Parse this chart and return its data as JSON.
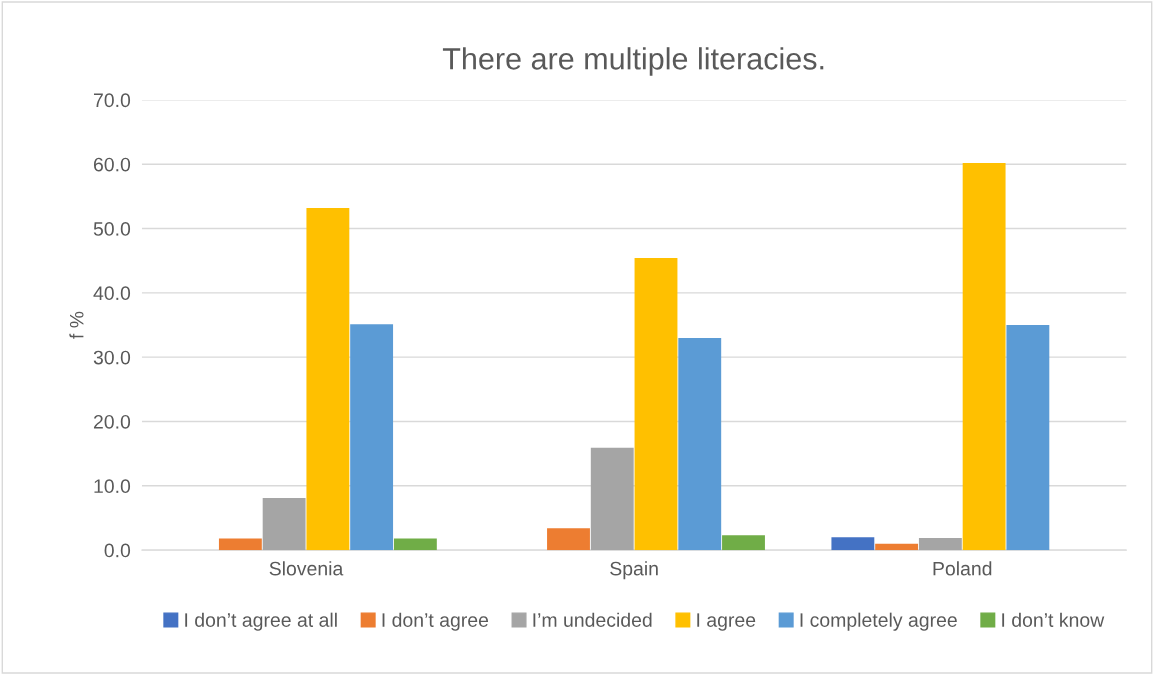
{
  "chart_data": {
    "type": "bar",
    "title": "There are multiple literacies.",
    "ylabel": "f %",
    "categories": [
      "Slovenia",
      "Spain",
      "Poland"
    ],
    "series": [
      {
        "name": "I don’t agree at all",
        "color": "#4472c4",
        "values": [
          0.0,
          0.0,
          2.0
        ]
      },
      {
        "name": "I don’t agree",
        "color": "#ed7d31",
        "values": [
          1.8,
          3.4,
          1.0
        ]
      },
      {
        "name": "I’m undecided",
        "color": "#a5a5a5",
        "values": [
          8.1,
          15.9,
          1.9
        ]
      },
      {
        "name": "I agree",
        "color": "#ffc000",
        "values": [
          53.2,
          45.4,
          60.2
        ]
      },
      {
        "name": "I completely agree",
        "color": "#5b9bd5",
        "values": [
          35.1,
          33.0,
          35.0
        ]
      },
      {
        "name": "I don’t know",
        "color": "#70ad47",
        "values": [
          1.8,
          2.3,
          0.0
        ]
      }
    ],
    "ylim": [
      0,
      70
    ],
    "yticks": [
      {
        "value": 0,
        "label": "0.0"
      },
      {
        "value": 10,
        "label": "10.0"
      },
      {
        "value": 20,
        "label": "20.0"
      },
      {
        "value": 30,
        "label": "30.0"
      },
      {
        "value": 40,
        "label": "40.0"
      },
      {
        "value": 50,
        "label": "50.0"
      },
      {
        "value": 60,
        "label": "60.0"
      },
      {
        "value": 70,
        "label": "70.0"
      }
    ],
    "grid": "y",
    "legend": "bottom"
  }
}
